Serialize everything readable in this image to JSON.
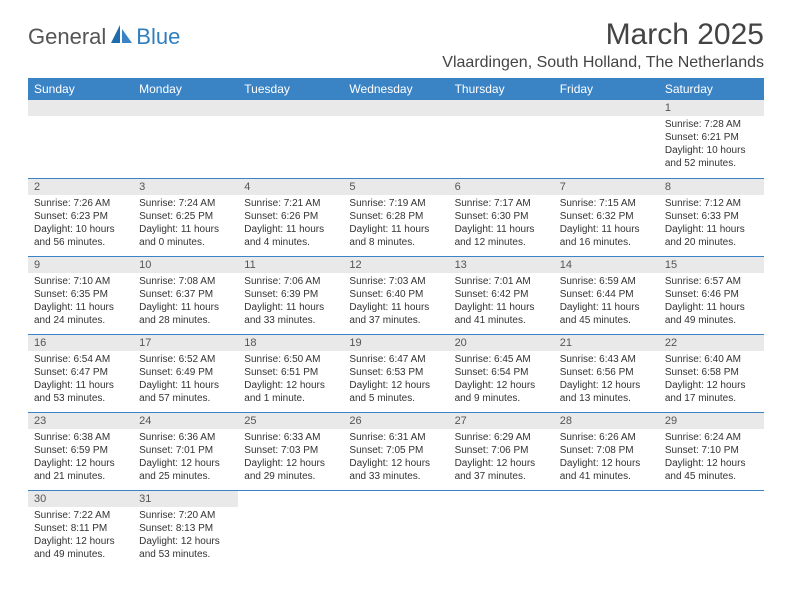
{
  "brand": {
    "part1": "General",
    "part2": "Blue"
  },
  "title": "March 2025",
  "location": "Vlaardingen, South Holland, The Netherlands",
  "colors": {
    "header_bg": "#3a83c5",
    "header_text": "#ffffff",
    "daynum_bg": "#e9e9e9",
    "border": "#3a83c5",
    "logo_gray": "#555555",
    "logo_blue": "#2f7fbf"
  },
  "weekdays": [
    "Sunday",
    "Monday",
    "Tuesday",
    "Wednesday",
    "Thursday",
    "Friday",
    "Saturday"
  ],
  "weeks": [
    [
      {
        "empty": true
      },
      {
        "empty": true
      },
      {
        "empty": true
      },
      {
        "empty": true
      },
      {
        "empty": true
      },
      {
        "empty": true
      },
      {
        "day": "1",
        "sunrise": "Sunrise: 7:28 AM",
        "sunset": "Sunset: 6:21 PM",
        "daylight": "Daylight: 10 hours and 52 minutes."
      }
    ],
    [
      {
        "day": "2",
        "sunrise": "Sunrise: 7:26 AM",
        "sunset": "Sunset: 6:23 PM",
        "daylight": "Daylight: 10 hours and 56 minutes."
      },
      {
        "day": "3",
        "sunrise": "Sunrise: 7:24 AM",
        "sunset": "Sunset: 6:25 PM",
        "daylight": "Daylight: 11 hours and 0 minutes."
      },
      {
        "day": "4",
        "sunrise": "Sunrise: 7:21 AM",
        "sunset": "Sunset: 6:26 PM",
        "daylight": "Daylight: 11 hours and 4 minutes."
      },
      {
        "day": "5",
        "sunrise": "Sunrise: 7:19 AM",
        "sunset": "Sunset: 6:28 PM",
        "daylight": "Daylight: 11 hours and 8 minutes."
      },
      {
        "day": "6",
        "sunrise": "Sunrise: 7:17 AM",
        "sunset": "Sunset: 6:30 PM",
        "daylight": "Daylight: 11 hours and 12 minutes."
      },
      {
        "day": "7",
        "sunrise": "Sunrise: 7:15 AM",
        "sunset": "Sunset: 6:32 PM",
        "daylight": "Daylight: 11 hours and 16 minutes."
      },
      {
        "day": "8",
        "sunrise": "Sunrise: 7:12 AM",
        "sunset": "Sunset: 6:33 PM",
        "daylight": "Daylight: 11 hours and 20 minutes."
      }
    ],
    [
      {
        "day": "9",
        "sunrise": "Sunrise: 7:10 AM",
        "sunset": "Sunset: 6:35 PM",
        "daylight": "Daylight: 11 hours and 24 minutes."
      },
      {
        "day": "10",
        "sunrise": "Sunrise: 7:08 AM",
        "sunset": "Sunset: 6:37 PM",
        "daylight": "Daylight: 11 hours and 28 minutes."
      },
      {
        "day": "11",
        "sunrise": "Sunrise: 7:06 AM",
        "sunset": "Sunset: 6:39 PM",
        "daylight": "Daylight: 11 hours and 33 minutes."
      },
      {
        "day": "12",
        "sunrise": "Sunrise: 7:03 AM",
        "sunset": "Sunset: 6:40 PM",
        "daylight": "Daylight: 11 hours and 37 minutes."
      },
      {
        "day": "13",
        "sunrise": "Sunrise: 7:01 AM",
        "sunset": "Sunset: 6:42 PM",
        "daylight": "Daylight: 11 hours and 41 minutes."
      },
      {
        "day": "14",
        "sunrise": "Sunrise: 6:59 AM",
        "sunset": "Sunset: 6:44 PM",
        "daylight": "Daylight: 11 hours and 45 minutes."
      },
      {
        "day": "15",
        "sunrise": "Sunrise: 6:57 AM",
        "sunset": "Sunset: 6:46 PM",
        "daylight": "Daylight: 11 hours and 49 minutes."
      }
    ],
    [
      {
        "day": "16",
        "sunrise": "Sunrise: 6:54 AM",
        "sunset": "Sunset: 6:47 PM",
        "daylight": "Daylight: 11 hours and 53 minutes."
      },
      {
        "day": "17",
        "sunrise": "Sunrise: 6:52 AM",
        "sunset": "Sunset: 6:49 PM",
        "daylight": "Daylight: 11 hours and 57 minutes."
      },
      {
        "day": "18",
        "sunrise": "Sunrise: 6:50 AM",
        "sunset": "Sunset: 6:51 PM",
        "daylight": "Daylight: 12 hours and 1 minute."
      },
      {
        "day": "19",
        "sunrise": "Sunrise: 6:47 AM",
        "sunset": "Sunset: 6:53 PM",
        "daylight": "Daylight: 12 hours and 5 minutes."
      },
      {
        "day": "20",
        "sunrise": "Sunrise: 6:45 AM",
        "sunset": "Sunset: 6:54 PM",
        "daylight": "Daylight: 12 hours and 9 minutes."
      },
      {
        "day": "21",
        "sunrise": "Sunrise: 6:43 AM",
        "sunset": "Sunset: 6:56 PM",
        "daylight": "Daylight: 12 hours and 13 minutes."
      },
      {
        "day": "22",
        "sunrise": "Sunrise: 6:40 AM",
        "sunset": "Sunset: 6:58 PM",
        "daylight": "Daylight: 12 hours and 17 minutes."
      }
    ],
    [
      {
        "day": "23",
        "sunrise": "Sunrise: 6:38 AM",
        "sunset": "Sunset: 6:59 PM",
        "daylight": "Daylight: 12 hours and 21 minutes."
      },
      {
        "day": "24",
        "sunrise": "Sunrise: 6:36 AM",
        "sunset": "Sunset: 7:01 PM",
        "daylight": "Daylight: 12 hours and 25 minutes."
      },
      {
        "day": "25",
        "sunrise": "Sunrise: 6:33 AM",
        "sunset": "Sunset: 7:03 PM",
        "daylight": "Daylight: 12 hours and 29 minutes."
      },
      {
        "day": "26",
        "sunrise": "Sunrise: 6:31 AM",
        "sunset": "Sunset: 7:05 PM",
        "daylight": "Daylight: 12 hours and 33 minutes."
      },
      {
        "day": "27",
        "sunrise": "Sunrise: 6:29 AM",
        "sunset": "Sunset: 7:06 PM",
        "daylight": "Daylight: 12 hours and 37 minutes."
      },
      {
        "day": "28",
        "sunrise": "Sunrise: 6:26 AM",
        "sunset": "Sunset: 7:08 PM",
        "daylight": "Daylight: 12 hours and 41 minutes."
      },
      {
        "day": "29",
        "sunrise": "Sunrise: 6:24 AM",
        "sunset": "Sunset: 7:10 PM",
        "daylight": "Daylight: 12 hours and 45 minutes."
      }
    ],
    [
      {
        "day": "30",
        "sunrise": "Sunrise: 7:22 AM",
        "sunset": "Sunset: 8:11 PM",
        "daylight": "Daylight: 12 hours and 49 minutes."
      },
      {
        "day": "31",
        "sunrise": "Sunrise: 7:20 AM",
        "sunset": "Sunset: 8:13 PM",
        "daylight": "Daylight: 12 hours and 53 minutes."
      },
      {
        "blank": true
      },
      {
        "blank": true
      },
      {
        "blank": true
      },
      {
        "blank": true
      },
      {
        "blank": true
      }
    ]
  ]
}
